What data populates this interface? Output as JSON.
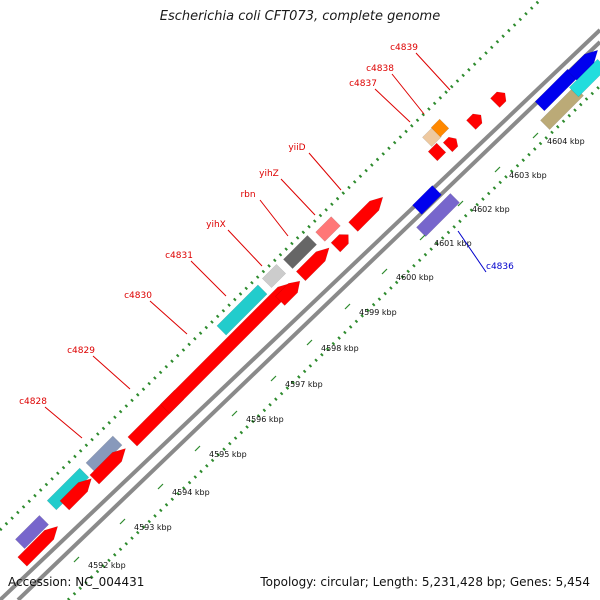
{
  "title": "Escherichia coli CFT073, complete genome",
  "footer": {
    "accession": "Accession: NC_004431",
    "summary": "Topology: circular; Length: 5,231,428 bp; Genes: 5,454"
  },
  "colors": {
    "label_forward": "#dd0000",
    "label_reverse": "#0000cc",
    "tick": "#2e8b2e",
    "backbone": "#888888"
  },
  "ticks": [
    "4592 kbp",
    "4593 kbp",
    "4594 kbp",
    "4595 kbp",
    "4596 kbp",
    "4597 kbp",
    "4598 kbp",
    "4599 kbp",
    "4600 kbp",
    "4601 kbp",
    "4602 kbp",
    "4603 kbp",
    "4604 kbp"
  ],
  "labels": [
    {
      "text": "c4828",
      "strand": "forward"
    },
    {
      "text": "c4829",
      "strand": "forward"
    },
    {
      "text": "c4830",
      "strand": "forward"
    },
    {
      "text": "c4831",
      "strand": "forward"
    },
    {
      "text": "yihX",
      "strand": "forward"
    },
    {
      "text": "rbn",
      "strand": "forward"
    },
    {
      "text": "yihZ",
      "strand": "forward"
    },
    {
      "text": "yiiD",
      "strand": "forward"
    },
    {
      "text": "c4837",
      "strand": "forward"
    },
    {
      "text": "c4838",
      "strand": "forward"
    },
    {
      "text": "c4839",
      "strand": "forward"
    },
    {
      "text": "c4836",
      "strand": "reverse"
    }
  ]
}
